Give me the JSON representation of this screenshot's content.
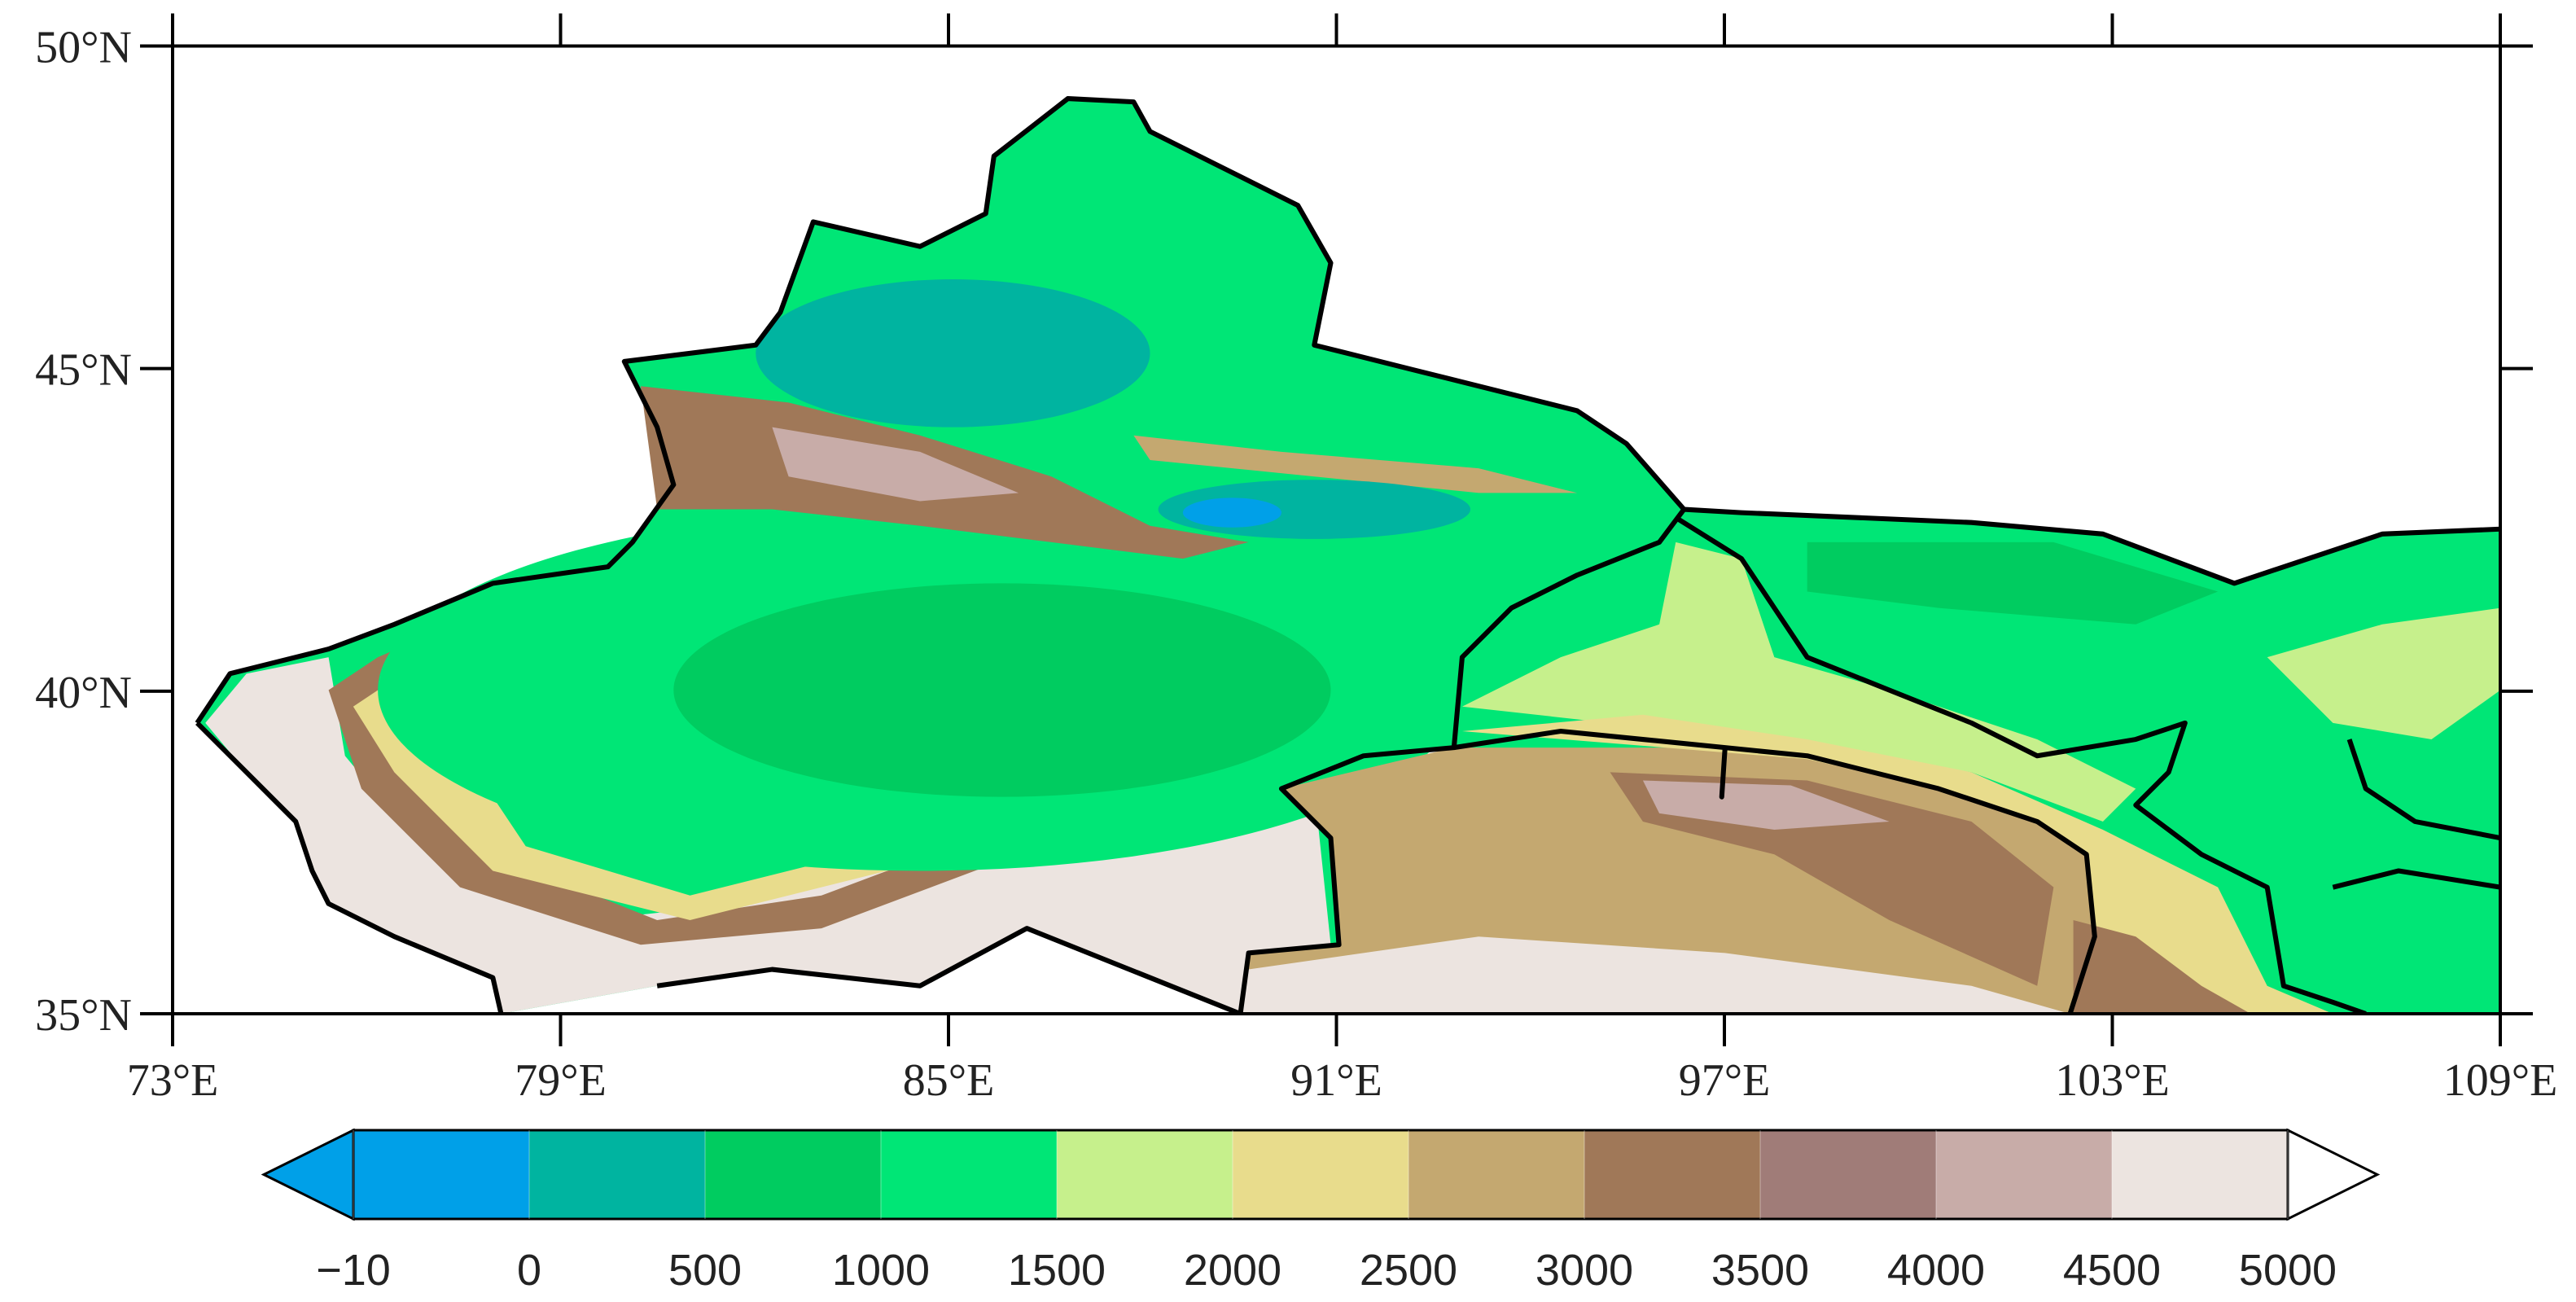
{
  "map": {
    "xlim": [
      73,
      109
    ],
    "ylim": [
      35,
      50
    ],
    "xticks": [
      {
        "value": 73,
        "label": "73°E"
      },
      {
        "value": 79,
        "label": "79°E"
      },
      {
        "value": 85,
        "label": "85°E"
      },
      {
        "value": 91,
        "label": "91°E"
      },
      {
        "value": 97,
        "label": "97°E"
      },
      {
        "value": 103,
        "label": "103°E"
      },
      {
        "value": 109,
        "label": "109°E"
      }
    ],
    "yticks": [
      {
        "value": 35,
        "label": "35°N"
      },
      {
        "value": 40,
        "label": "40°N"
      },
      {
        "value": 45,
        "label": "45°N"
      },
      {
        "value": 50,
        "label": "50°N"
      }
    ]
  },
  "colorbar": {
    "levels": [
      {
        "value": -10,
        "label": "−10"
      },
      0,
      500,
      1000,
      1500,
      2000,
      2500,
      3000,
      3500,
      4000,
      4500,
      5000
    ],
    "under_color": "#00a0e8",
    "colors": [
      "#00a0e8",
      "#00b4a0",
      "#00cc60",
      "#00e676",
      "#c6f08c",
      "#e8dc8c",
      "#c4a870",
      "#a07858",
      "#a07c78",
      "#c8aca8",
      "#ece4e0"
    ],
    "over_color": "#ffffff"
  }
}
